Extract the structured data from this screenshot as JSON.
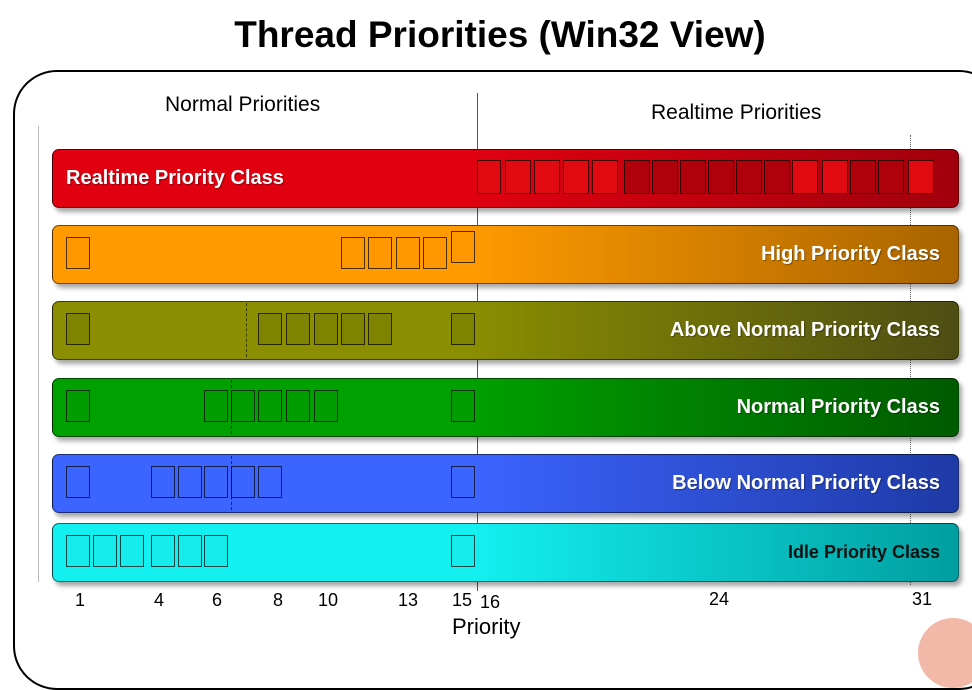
{
  "title": "Thread Priorities (Win32 View)",
  "regions": {
    "normal": "Normal Priorities",
    "realtime": "Realtime Priorities"
  },
  "axis": {
    "title": "Priority",
    "ticks": [
      "1",
      "4",
      "6",
      "8",
      "10",
      "13",
      "15",
      "16",
      "24",
      "31"
    ]
  },
  "classes": [
    {
      "label": "Realtime Priority Class",
      "base_color": "#e00010",
      "end_color": "#a0000c",
      "slot_color": "#e00a10",
      "priorities": [
        16,
        17,
        18,
        19,
        20,
        21,
        22,
        23,
        24,
        25,
        26,
        27,
        28,
        29,
        30,
        31
      ]
    },
    {
      "label": "High Priority Class",
      "base_color": "#ff9a00",
      "end_color": "#a86400",
      "slot_color": "#ff9800",
      "priorities": [
        1,
        11,
        12,
        13,
        14,
        15
      ]
    },
    {
      "label": "Above Normal Priority Class",
      "base_color": "#8a8e00",
      "end_color": "#4e4e14",
      "slot_color": "#7f8400",
      "priorities": [
        1,
        8,
        9,
        10,
        11,
        12,
        15
      ]
    },
    {
      "label": "Normal Priority Class",
      "base_color": "#00a000",
      "end_color": "#005a00",
      "slot_color": "#009c00",
      "priorities": [
        1,
        6,
        7,
        8,
        9,
        10,
        15
      ]
    },
    {
      "label": "Below Normal Priority Class",
      "base_color": "#3c64ff",
      "end_color": "#1e3aa6",
      "slot_color": "#3c64ff",
      "priorities": [
        1,
        4,
        5,
        6,
        7,
        8,
        15
      ]
    },
    {
      "label": "Idle Priority Class",
      "base_color": "#14f0f0",
      "end_color": "#009ea0",
      "slot_color": "#16ecec",
      "priorities": [
        1,
        2,
        3,
        4,
        5,
        6,
        15
      ]
    }
  ]
}
